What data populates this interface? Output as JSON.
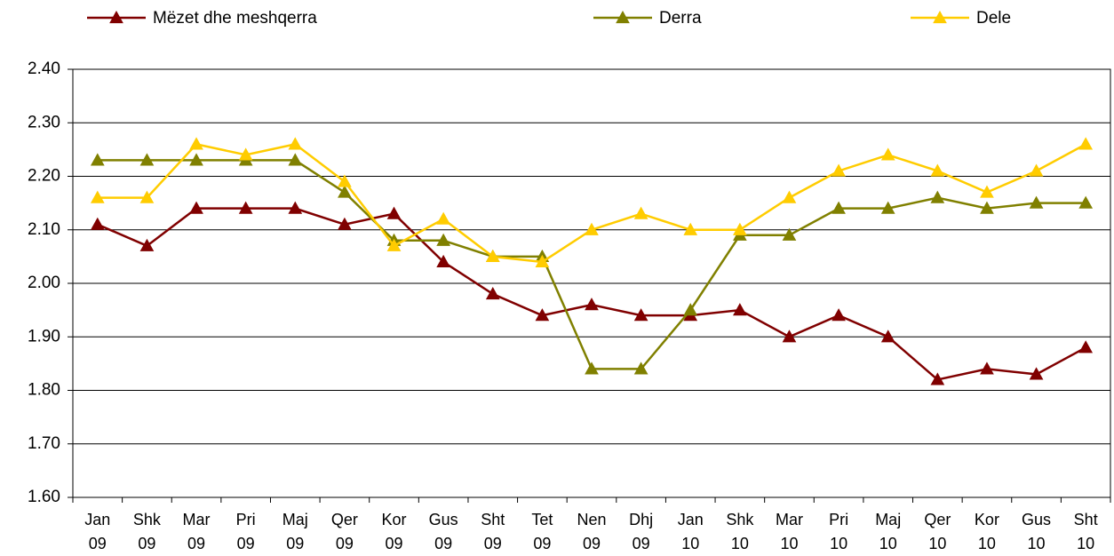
{
  "chart_data": {
    "type": "line",
    "categories": [
      "Jan 09",
      "Shk 09",
      "Mar 09",
      "Pri 09",
      "Maj 09",
      "Qer 09",
      "Kor 09",
      "Gus 09",
      "Sht 09",
      "Tet 09",
      "Nen 09",
      "Dhj 09",
      "Jan 10",
      "Shk 10",
      "Mar 10",
      "Pri 10",
      "Maj 10",
      "Qer 10",
      "Kor 10",
      "Gus 10",
      "Sht 10"
    ],
    "series": [
      {
        "name": "Mëzet dhe meshqerra",
        "color": "#800000",
        "values": [
          2.11,
          2.07,
          2.14,
          2.14,
          2.14,
          2.11,
          2.13,
          2.04,
          1.98,
          1.94,
          1.96,
          1.94,
          1.94,
          1.95,
          1.9,
          1.94,
          1.9,
          1.82,
          1.84,
          1.83,
          1.88
        ]
      },
      {
        "name": "Derra",
        "color": "#808000",
        "values": [
          2.23,
          2.23,
          2.23,
          2.23,
          2.23,
          2.17,
          2.08,
          2.08,
          2.05,
          2.05,
          1.84,
          1.84,
          1.95,
          2.09,
          2.09,
          2.14,
          2.14,
          2.16,
          2.14,
          2.15,
          2.15
        ]
      },
      {
        "name": "Dele",
        "color": "#ffcc00",
        "values": [
          2.16,
          2.16,
          2.26,
          2.24,
          2.26,
          2.19,
          2.07,
          2.12,
          2.05,
          2.04,
          2.1,
          2.13,
          2.1,
          2.1,
          2.16,
          2.21,
          2.24,
          2.21,
          2.17,
          2.21,
          2.26
        ]
      }
    ],
    "ylim": [
      1.6,
      2.4
    ],
    "yticks": [
      {
        "value": 1.6,
        "label": "1.60"
      },
      {
        "value": 1.7,
        "label": "1.70"
      },
      {
        "value": 1.8,
        "label": "1.80"
      },
      {
        "value": 1.9,
        "label": "1.90"
      },
      {
        "value": 2.0,
        "label": "2.00"
      },
      {
        "value": 2.1,
        "label": "2.10"
      },
      {
        "value": 2.2,
        "label": "2.20"
      },
      {
        "value": 2.3,
        "label": "2.30"
      },
      {
        "value": 2.4,
        "label": "2.40"
      }
    ],
    "grid": true,
    "legend": "top"
  }
}
